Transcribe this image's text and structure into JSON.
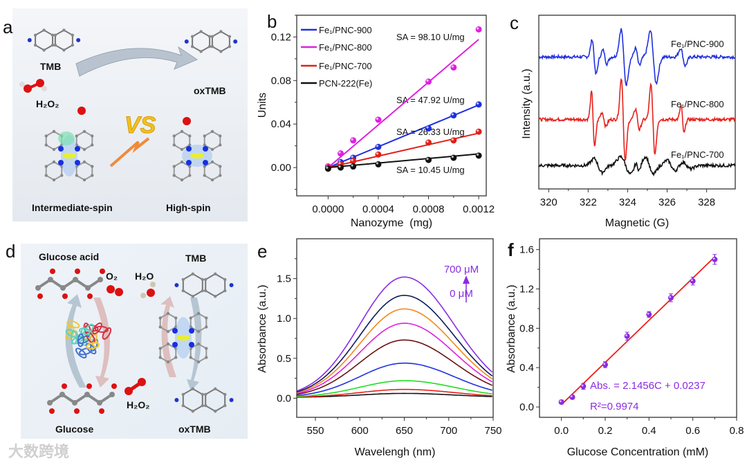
{
  "figure": {
    "panel_labels": {
      "a": "a",
      "b": "b",
      "c": "c",
      "d": "d",
      "e": "e",
      "f": "f"
    },
    "panel_a": {
      "tmb": "TMB",
      "h2o2": "H₂O₂",
      "oxtmb": "oxTMB",
      "vs": "VS",
      "intermediate": "Intermediate-spin",
      "high": "High-spin"
    },
    "panel_d": {
      "glucose_acid": "Glucose acid",
      "o2": "O₂",
      "h2o": "H₂O",
      "tmb": "TMB",
      "glucose": "Glucose",
      "h2o2": "H₂O₂",
      "oxtmb": "oxTMB"
    },
    "watermark": "大数跨境"
  },
  "chart_data": [
    {
      "panel": "b",
      "type": "scatter",
      "xlabel": "Nanozyme  (mg)",
      "ylabel": "Units",
      "xlim": [
        -0.00025,
        0.00126
      ],
      "ylim": [
        -0.026,
        0.14
      ],
      "xticks": [
        0,
        0.0004,
        0.0008,
        0.0012
      ],
      "xtick_labels": [
        "0.0000",
        "0.0004",
        "0.0008",
        "0.0012"
      ],
      "yticks": [
        0,
        0.04,
        0.08,
        0.12
      ],
      "ytick_labels": [
        "0.00",
        "0.04",
        "0.08",
        "0.12"
      ],
      "legend": "top-left",
      "x": [
        0,
        0.0001,
        0.0002,
        0.0004,
        0.0008,
        0.001,
        0.0012
      ],
      "series": [
        {
          "name": "Fe₁/PNC-900",
          "color": "#1f2fe0",
          "values": [
            0.001,
            0.005,
            0.009,
            0.019,
            0.036,
            0.048,
            0.058
          ],
          "slope": 47.92,
          "annotation": "SA = 47.92 U/mg"
        },
        {
          "name": "Fe₁/PNC-800",
          "color": "#e020e0",
          "values": [
            0.001,
            0.013,
            0.025,
            0.044,
            0.079,
            0.092,
            0.127
          ],
          "slope": 98.1,
          "annotation": "SA = 98.10 U/mg"
        },
        {
          "name": "Fe₁/PNC-700",
          "color": "#e0201a",
          "values": [
            0.0,
            0.003,
            0.006,
            0.012,
            0.023,
            0.025,
            0.033
          ],
          "slope": 26.33,
          "annotation": "SA = 26.33 U/mg"
        },
        {
          "name": "PCN-222(Fe)",
          "color": "#111111",
          "values": [
            -0.001,
            0.0,
            0.001,
            0.003,
            0.007,
            0.009,
            0.011
          ],
          "slope": 10.45,
          "annotation": "SA = 10.45 U/mg"
        }
      ]
    },
    {
      "panel": "c",
      "type": "line",
      "xlabel": "Magnetic (G)",
      "ylabel": "Intensity (a.u.)",
      "xlim": [
        319.5,
        329.45
      ],
      "ylim": [
        0,
        10
      ],
      "xticks": [
        320,
        322,
        324,
        326,
        328
      ],
      "xtick_labels": [
        "320",
        "322",
        "324",
        "326",
        "328"
      ],
      "series": [
        {
          "name": "Fe₁/PNC-900",
          "color": "#1f2fe0",
          "offset": 7.6,
          "lines": [
            [
              322.3,
              0.1,
              1.0
            ],
            [
              322.85,
              0.1,
              0.4
            ],
            [
              323.8,
              0.13,
              1.6
            ],
            [
              324.5,
              0.1,
              0.5
            ],
            [
              325.3,
              0.15,
              1.5
            ],
            [
              326.8,
              0.12,
              0.5
            ]
          ]
        },
        {
          "name": "Fe₁/PNC-800",
          "color": "#e8201a",
          "offset": 4.0,
          "lines": [
            [
              322.25,
              0.08,
              1.6
            ],
            [
              322.8,
              0.1,
              0.4
            ],
            [
              323.78,
              0.1,
              2.4
            ],
            [
              324.5,
              0.1,
              0.6
            ],
            [
              325.28,
              0.1,
              2.0
            ],
            [
              326.78,
              0.08,
              0.8
            ]
          ]
        },
        {
          "name": "Fe₁/PNC-700",
          "color": "#111111",
          "offset": 1.35,
          "lines": [
            [
              322.5,
              0.2,
              0.4
            ],
            [
              323.9,
              0.25,
              0.5
            ],
            [
              324.5,
              0.1,
              0.3
            ],
            [
              325.1,
              0.2,
              0.5
            ],
            [
              326.2,
              0.2,
              0.3
            ],
            [
              327.0,
              0.2,
              0.2
            ]
          ]
        }
      ]
    },
    {
      "panel": "e",
      "type": "line",
      "xlabel": "Wavelengh (nm)",
      "ylabel": "Absorbance (a.u.)",
      "xlim": [
        529,
        750
      ],
      "ylim": [
        -0.24,
        2.0
      ],
      "xticks": [
        550,
        600,
        650,
        700,
        750
      ],
      "xtick_labels": [
        "550",
        "600",
        "650",
        "700",
        "750"
      ],
      "yticks": [
        0,
        0.5,
        1.0,
        1.5
      ],
      "ytick_labels": [
        "0.0",
        "0.5",
        "1.0",
        "1.5"
      ],
      "peak_center": 650,
      "sigma_left": 50,
      "sigma_right": 56,
      "annotation_high": "700 μM",
      "annotation_low": "0 μM",
      "annotation_color": "#8a2be2",
      "series": [
        {
          "color": "#111111",
          "peak": 0.05
        },
        {
          "color": "#e8201a",
          "peak": 0.1
        },
        {
          "color": "#22dd22",
          "peak": 0.21
        },
        {
          "color": "#1f2fe0",
          "peak": 0.43
        },
        {
          "color": "#6b1010",
          "peak": 0.72
        },
        {
          "color": "#e020e0",
          "peak": 0.93
        },
        {
          "color": "#f08a1a",
          "peak": 1.11
        },
        {
          "color": "#0c1a5c",
          "peak": 1.28
        },
        {
          "color": "#8a2be2",
          "peak": 1.51
        }
      ]
    },
    {
      "panel": "f",
      "type": "scatter",
      "xlabel": "Glucose Concentration (mM)",
      "ylabel": "Absorbance (a.u.)",
      "xlim": [
        -0.1,
        0.8
      ],
      "ylim": [
        -0.105,
        1.71
      ],
      "xticks": [
        0,
        0.2,
        0.4,
        0.6,
        0.8
      ],
      "xtick_labels": [
        "0.0",
        "0.2",
        "0.4",
        "0.6",
        "0.8"
      ],
      "yticks": [
        0,
        0.4,
        0.8,
        1.2,
        1.6
      ],
      "ytick_labels": [
        "0.0",
        "0.4",
        "0.8",
        "1.2",
        "1.6"
      ],
      "x": [
        0,
        0.05,
        0.1,
        0.2,
        0.3,
        0.4,
        0.5,
        0.6,
        0.7
      ],
      "y": [
        0.05,
        0.1,
        0.21,
        0.43,
        0.72,
        0.94,
        1.11,
        1.28,
        1.5
      ],
      "error": [
        0.02,
        0.02,
        0.03,
        0.03,
        0.04,
        0.03,
        0.04,
        0.04,
        0.05
      ],
      "point_color": "#8a2be2",
      "fit": {
        "slope": 2.1456,
        "intercept": 0.0237,
        "x_range": [
          0,
          0.7
        ],
        "color": "#e8201a"
      },
      "equation": "Abs. =  2.1456C + 0.0237",
      "r2": "R²=0.9974"
    }
  ]
}
